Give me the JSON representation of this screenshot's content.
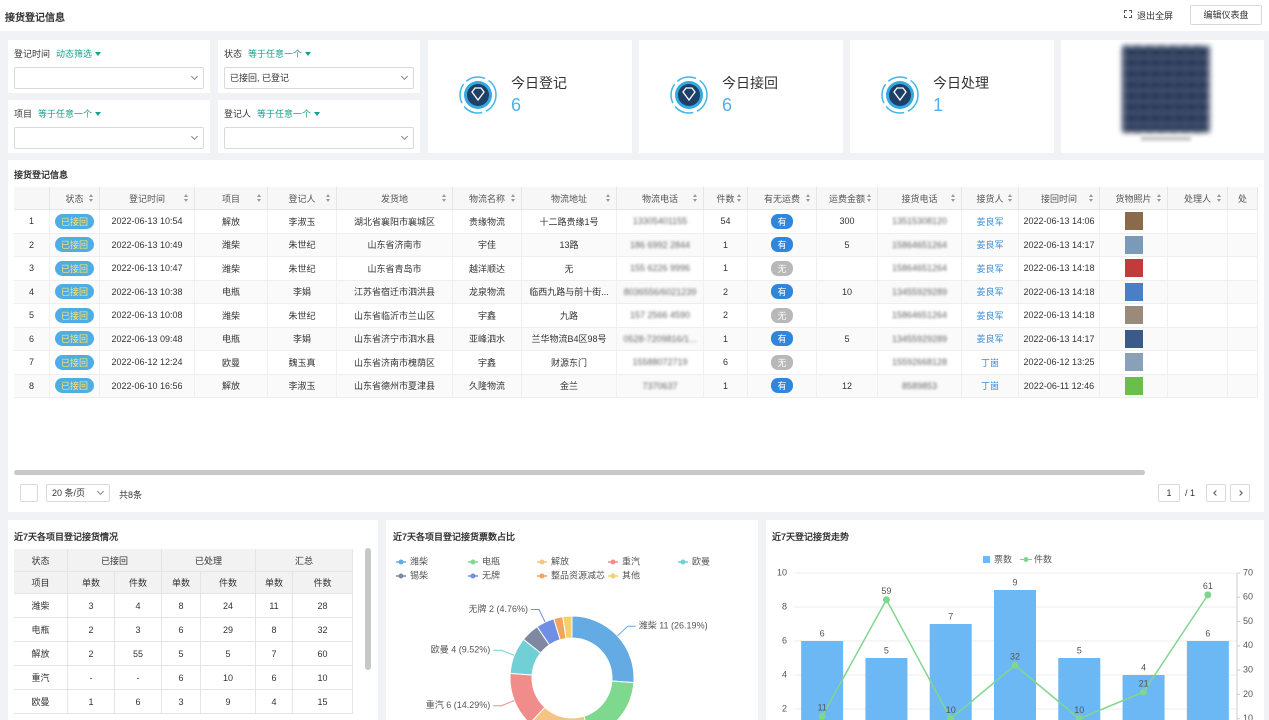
{
  "header": {
    "title": "接货登记信息",
    "actions": [
      "退出全屏",
      "编辑仪表盘"
    ]
  },
  "filters": [
    {
      "label": "登记时间",
      "operator": "动态筛选"
    },
    {
      "label": "状态",
      "operator": "等于任意一个",
      "value": "已接回, 已登记"
    },
    {
      "label": "项目",
      "operator": "等于任意一个"
    },
    {
      "label": "登记人",
      "operator": "等于任意一个"
    }
  ],
  "stats": [
    {
      "label": "今日登记",
      "value": 6
    },
    {
      "label": "今日接回",
      "value": 6
    },
    {
      "label": "今日处理",
      "value": 1
    }
  ],
  "table": {
    "title": "接货登记信息",
    "columns": [
      null,
      "状态",
      "登记时间",
      "项目",
      "登记人",
      "发货地",
      "物流名称",
      "物流地址",
      "物流电话",
      "件数",
      "有无运费",
      "运费金额",
      "接货电话",
      "接货人",
      "接回时间",
      "货物照片",
      "处理人",
      "处"
    ],
    "rows": [
      [
        1,
        "已接回",
        "2022-06-13 10:54",
        "解放",
        "李淑玉",
        "湖北省襄阳市襄城区",
        "贵缘物流",
        "十二路贵缘1号",
        "13305401155",
        54,
        "有",
        300,
        "13515308120",
        "姜良军",
        "2022-06-13 14:06",
        null,
        null,
        null
      ],
      [
        2,
        "已接回",
        "2022-06-13 10:49",
        "潍柴",
        "朱世纪",
        "山东省济南市",
        "宇佳",
        "13路",
        "186 6992 2844",
        1,
        "有",
        5,
        "15864651264",
        "姜良军",
        "2022-06-13 14:17",
        null,
        null,
        null
      ],
      [
        3,
        "已接回",
        "2022-06-13 10:47",
        "潍柴",
        "朱世纪",
        "山东省青岛市",
        "越洋顺达",
        "无",
        "155 6226 9996",
        1,
        "无",
        null,
        "15864651264",
        "姜良军",
        "2022-06-13 14:18",
        null,
        null,
        null
      ],
      [
        4,
        "已接回",
        "2022-06-13 10:38",
        "电瓶",
        "李娟",
        "江苏省宿迁市泗洪县",
        "龙泉物流",
        "临西九路与前十街...",
        "8036556/6021239",
        2,
        "有",
        10,
        "13455929289",
        "姜良军",
        "2022-06-13 14:18",
        null,
        null,
        null
      ],
      [
        5,
        "已接回",
        "2022-06-13 10:08",
        "潍柴",
        "朱世纪",
        "山东省临沂市兰山区",
        "宇鑫",
        "九路",
        "157 2566 4590",
        2,
        "无",
        null,
        "15864651264",
        "姜良军",
        "2022-06-13 14:18",
        null,
        null,
        null
      ],
      [
        6,
        "已接回",
        "2022-06-13 09:48",
        "电瓶",
        "李娟",
        "山东省济宁市泗水县",
        "亚峰泗水",
        "兰华物流B4区98号",
        "0528-7209816/1...",
        1,
        "有",
        5,
        "13455929289",
        "姜良军",
        "2022-06-13 14:17",
        null,
        null,
        null
      ],
      [
        7,
        "已接回",
        "2022-06-12 12:24",
        "欧曼",
        "魏玉真",
        "山东省济南市槐荫区",
        "宇鑫",
        "财源东门",
        "15588072719",
        6,
        "无",
        null,
        "15592668128",
        "丁崮",
        "2022-06-12 13:25",
        null,
        null,
        null
      ],
      [
        8,
        "已接回",
        "2022-06-10 16:56",
        "解放",
        "李淑玉",
        "山东省德州市夏津县",
        "久隆物流",
        "金兰",
        "7370637",
        1,
        "有",
        12,
        "8589853",
        "丁崮",
        "2022-06-11 12:46",
        null,
        null,
        null
      ]
    ]
  },
  "pagination": {
    "page_size": "20 条/页",
    "total": "共8条",
    "page": 1,
    "pages": "/ 1"
  },
  "summary_table": {
    "title": "近7天各项目登记接货情况",
    "header_groups": [
      "状态",
      "已接回",
      "已处理",
      "汇总"
    ],
    "header": [
      "项目",
      "单数",
      "件数",
      "单数",
      "件数",
      "单数",
      "件数"
    ],
    "rows": [
      [
        "潍柴",
        3,
        4,
        8,
        24,
        11,
        28
      ],
      [
        "电瓶",
        2,
        3,
        6,
        29,
        8,
        32
      ],
      [
        "解放",
        2,
        55,
        5,
        5,
        7,
        60
      ],
      [
        "重汽",
        "-",
        "-",
        6,
        10,
        6,
        10
      ],
      [
        "欧曼",
        1,
        6,
        3,
        9,
        4,
        15
      ]
    ]
  },
  "chart_data": [
    {
      "type": "pie",
      "title": "近7天各项目登记接货票数占比",
      "donut": true,
      "categories": [
        "潍柴",
        "电瓶",
        "解放",
        "重汽",
        "欧曼",
        "锡柴",
        "无牌",
        "整品资源减芯",
        "其他"
      ],
      "values": [
        11,
        8,
        7,
        6,
        4,
        2,
        2,
        1,
        1
      ],
      "value_labels": [
        "潍柴 11 (26.19%)",
        null,
        null,
        "重汽 6 (14.29%)",
        "欧曼 4 (9.52%)",
        null,
        "无牌 2 (4.76%)",
        null,
        null
      ],
      "colors": [
        "#64aae3",
        "#7ed98f",
        "#f5c384",
        "#f08d8b",
        "#70d0d6",
        "#7f88a3",
        "#6f8fe6",
        "#f0a45c",
        "#f4d06a"
      ]
    },
    {
      "type": "combo",
      "title": "近7天登记接货走势",
      "categories": [
        null,
        null,
        null,
        null,
        null,
        null,
        null
      ],
      "series": [
        {
          "name": "票数",
          "type": "bar",
          "color": "#6cb8f4",
          "values": [
            6,
            5,
            7,
            9,
            5,
            4,
            6
          ]
        },
        {
          "name": "件数",
          "type": "line",
          "axis": "y2",
          "color": "#80d68e",
          "values": [
            11,
            59,
            10,
            32,
            10,
            21,
            61
          ]
        }
      ],
      "ylim": [
        0,
        10
      ],
      "yticks": [
        2,
        4,
        6,
        8,
        10
      ],
      "y2lim": [
        0,
        70
      ],
      "y2ticks": [
        10,
        20,
        30,
        40,
        50,
        60,
        70
      ],
      "grid": true
    }
  ]
}
